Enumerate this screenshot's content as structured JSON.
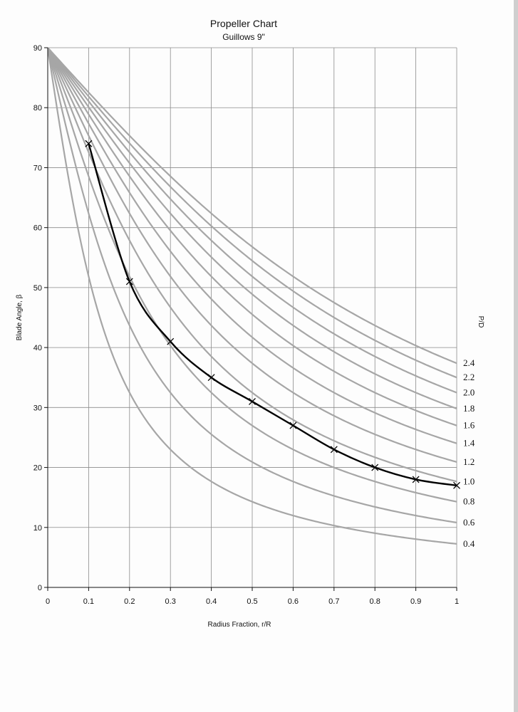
{
  "chart_data": {
    "type": "line",
    "title": "Propeller Chart",
    "subtitle": "Guillows 9\"",
    "xlabel": "Radius Fraction, r/R",
    "ylabel": "Blade Angle, β",
    "pd_title": "P/D",
    "xlim": [
      0,
      1
    ],
    "ylim": [
      0,
      90
    ],
    "x_ticks": [
      "0",
      "0.1",
      "0.2",
      "0.3",
      "0.4",
      "0.5",
      "0.6",
      "0.7",
      "0.8",
      "0.9",
      "1"
    ],
    "y_ticks": [
      "0",
      "10",
      "20",
      "30",
      "40",
      "50",
      "60",
      "70",
      "80",
      "90"
    ],
    "grid": true,
    "pd_curves": [
      {
        "name": "0.4",
        "pd": 0.4
      },
      {
        "name": "0.6",
        "pd": 0.6
      },
      {
        "name": "0.8",
        "pd": 0.8
      },
      {
        "name": "1.0",
        "pd": 1.0
      },
      {
        "name": "1.2",
        "pd": 1.2
      },
      {
        "name": "1.4",
        "pd": 1.4
      },
      {
        "name": "1.6",
        "pd": 1.6
      },
      {
        "name": "1.8",
        "pd": 1.8
      },
      {
        "name": "2.0",
        "pd": 2.0
      },
      {
        "name": "2.2",
        "pd": 2.2
      },
      {
        "name": "2.4",
        "pd": 2.4
      }
    ],
    "series": [
      {
        "x": [
          0.1,
          0.2,
          0.3,
          0.4,
          0.5,
          0.6,
          0.7,
          0.8,
          0.9,
          1.0
        ],
        "values": [
          74,
          51,
          41,
          35,
          31,
          27,
          23,
          20,
          18,
          17
        ]
      }
    ],
    "colors": {
      "pd_curves": "#a6a6a6",
      "series": "#000000",
      "grid": "#8c8c8c"
    }
  }
}
